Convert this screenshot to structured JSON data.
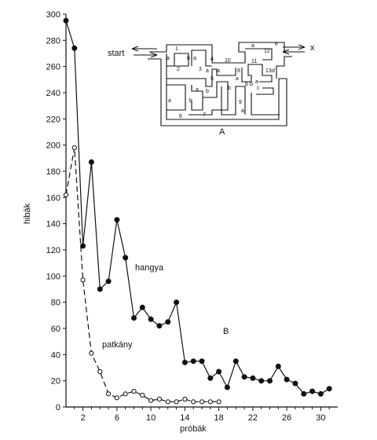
{
  "chart_data": {
    "type": "line",
    "xlabel": "próbák",
    "ylabel": "hibák",
    "xlim": [
      0,
      32
    ],
    "ylim": [
      0,
      300
    ],
    "x_ticks": [
      2,
      6,
      10,
      14,
      18,
      22,
      26,
      30
    ],
    "y_ticks": [
      0,
      20,
      40,
      60,
      80,
      100,
      120,
      140,
      160,
      180,
      200,
      220,
      240,
      260,
      280,
      300
    ],
    "grid": false,
    "series": [
      {
        "name": "hangya",
        "style": "solid",
        "marker": "filled-circle",
        "x": [
          0,
          1,
          2,
          3,
          4,
          5,
          6,
          7,
          8,
          9,
          10,
          11,
          12,
          13,
          14,
          15,
          16,
          17,
          18,
          19,
          20,
          21,
          22,
          23,
          24,
          25,
          26,
          27,
          28,
          29,
          30,
          31
        ],
        "values": [
          295,
          274,
          123,
          187,
          90,
          96,
          143,
          114,
          68,
          76,
          67,
          62,
          65,
          80,
          34,
          35,
          35,
          22,
          27,
          15,
          35,
          23,
          22,
          20,
          20,
          31,
          21,
          18,
          10,
          12,
          10,
          14
        ]
      },
      {
        "name": "patkány",
        "style": "dashed",
        "marker": "open-circle",
        "x": [
          0,
          1,
          2,
          3,
          4,
          5,
          6,
          7,
          8,
          9,
          10,
          11,
          12,
          13,
          14,
          15,
          16,
          17,
          18
        ],
        "values": [
          162,
          198,
          97,
          41,
          27,
          10,
          7,
          10,
          12,
          9,
          5,
          6,
          4,
          4,
          6,
          4,
          4,
          4,
          4
        ]
      }
    ],
    "annotations": {
      "panel_b": "B"
    }
  },
  "inset": {
    "panel_label": "A",
    "start_label": "start",
    "exit_label": "x",
    "labels": [
      {
        "t": "1",
        "x": 223,
        "y": 64
      },
      {
        "t": "2",
        "x": 225,
        "y": 90
      },
      {
        "t": "3",
        "x": 253,
        "y": 90
      },
      {
        "t": "4",
        "x": 268,
        "y": 77
      },
      {
        "t": "5",
        "x": 268,
        "y": 102
      },
      {
        "t": "6",
        "x": 228,
        "y": 150
      },
      {
        "t": "7",
        "x": 258,
        "y": 148
      },
      {
        "t": "8",
        "x": 302,
        "y": 92
      },
      {
        "t": "9",
        "x": 304,
        "y": 132
      },
      {
        "t": "10",
        "x": 286,
        "y": 79
      },
      {
        "t": "11",
        "x": 320,
        "y": 80
      },
      {
        "t": "12",
        "x": 336,
        "y": 67
      },
      {
        "t": "13",
        "x": 338,
        "y": 92
      },
      {
        "t": "a",
        "x": 212,
        "y": 76
      },
      {
        "t": "b",
        "x": 238,
        "y": 76
      },
      {
        "t": "a",
        "x": 246,
        "y": 76
      },
      {
        "t": "a",
        "x": 214,
        "y": 130
      },
      {
        "t": "b",
        "x": 241,
        "y": 130
      },
      {
        "t": "a",
        "x": 249,
        "y": 116
      },
      {
        "t": "b",
        "x": 262,
        "y": 118
      },
      {
        "t": "a",
        "x": 276,
        "y": 92
      },
      {
        "t": "a",
        "x": 262,
        "y": 92
      },
      {
        "t": "b",
        "x": 290,
        "y": 114
      },
      {
        "t": "a",
        "x": 300,
        "y": 102
      },
      {
        "t": "b",
        "x": 312,
        "y": 109
      },
      {
        "t": "b",
        "x": 318,
        "y": 109
      },
      {
        "t": "a",
        "x": 325,
        "y": 106
      },
      {
        "t": "c",
        "x": 327,
        "y": 114
      },
      {
        "t": "d",
        "x": 346,
        "y": 92
      },
      {
        "t": "a",
        "x": 320,
        "y": 60
      },
      {
        "t": "e",
        "x": 350,
        "y": 58
      },
      {
        "t": "a",
        "x": 307,
        "y": 143
      }
    ]
  }
}
